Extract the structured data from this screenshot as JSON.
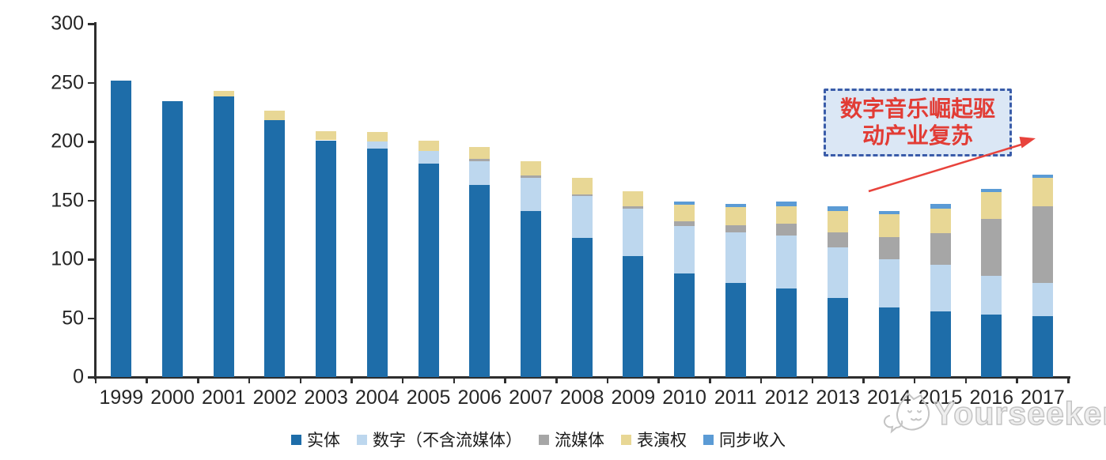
{
  "chart_data": {
    "type": "bar",
    "stacked": true,
    "categories": [
      "1999",
      "2000",
      "2001",
      "2002",
      "2003",
      "2004",
      "2005",
      "2006",
      "2007",
      "2008",
      "2009",
      "2010",
      "2011",
      "2012",
      "2013",
      "2014",
      "2015",
      "2016",
      "2017"
    ],
    "series": [
      {
        "name": "实体",
        "key": "physical",
        "color": "#1e6da9",
        "values": [
          252,
          234,
          238,
          218,
          201,
          194,
          181,
          163,
          141,
          118,
          103,
          88,
          80,
          75,
          67,
          59,
          56,
          53,
          52
        ]
      },
      {
        "name": "数字（不含流媒体）",
        "key": "digital-excl-streaming",
        "color": "#bdd7ee",
        "values": [
          0,
          0,
          0,
          0,
          0,
          6,
          11,
          20,
          28,
          36,
          40,
          40,
          43,
          45,
          43,
          41,
          39,
          33,
          28
        ]
      },
      {
        "name": "流媒体",
        "key": "streaming",
        "color": "#a6a6a6",
        "values": [
          0,
          0,
          0,
          0,
          0,
          0,
          0,
          2,
          2,
          1,
          2,
          4,
          6,
          10,
          13,
          19,
          27,
          48,
          65
        ]
      },
      {
        "name": "表演权",
        "key": "performance-rights",
        "color": "#e8d795",
        "values": [
          0,
          0,
          5,
          8,
          8,
          8,
          9,
          10,
          12,
          14,
          13,
          14,
          15,
          15,
          18,
          19,
          21,
          23,
          24
        ]
      },
      {
        "name": "同步收入",
        "key": "sync-revenue",
        "color": "#5b9bd5",
        "values": [
          0,
          0,
          0,
          0,
          0,
          0,
          0,
          0,
          0,
          0,
          0,
          3,
          3,
          4,
          4,
          3,
          4,
          3,
          3
        ]
      }
    ],
    "ylim": [
      0,
      300
    ],
    "y_ticks": [
      0,
      50,
      100,
      150,
      200,
      250,
      300
    ],
    "grid": false,
    "legend_position": "bottom",
    "annotations": [
      "数字音乐崛起驱动产业复苏"
    ]
  },
  "annotation": {
    "line1": "数字音乐崛起驱",
    "line2": "动产业复苏",
    "text_color": "#e23c35",
    "box_border_color": "#3a5ca9",
    "box_fill_color": "#dbe7f5",
    "arrow_color": "#e8433c"
  },
  "watermark": {
    "text": "Yourseeker"
  }
}
